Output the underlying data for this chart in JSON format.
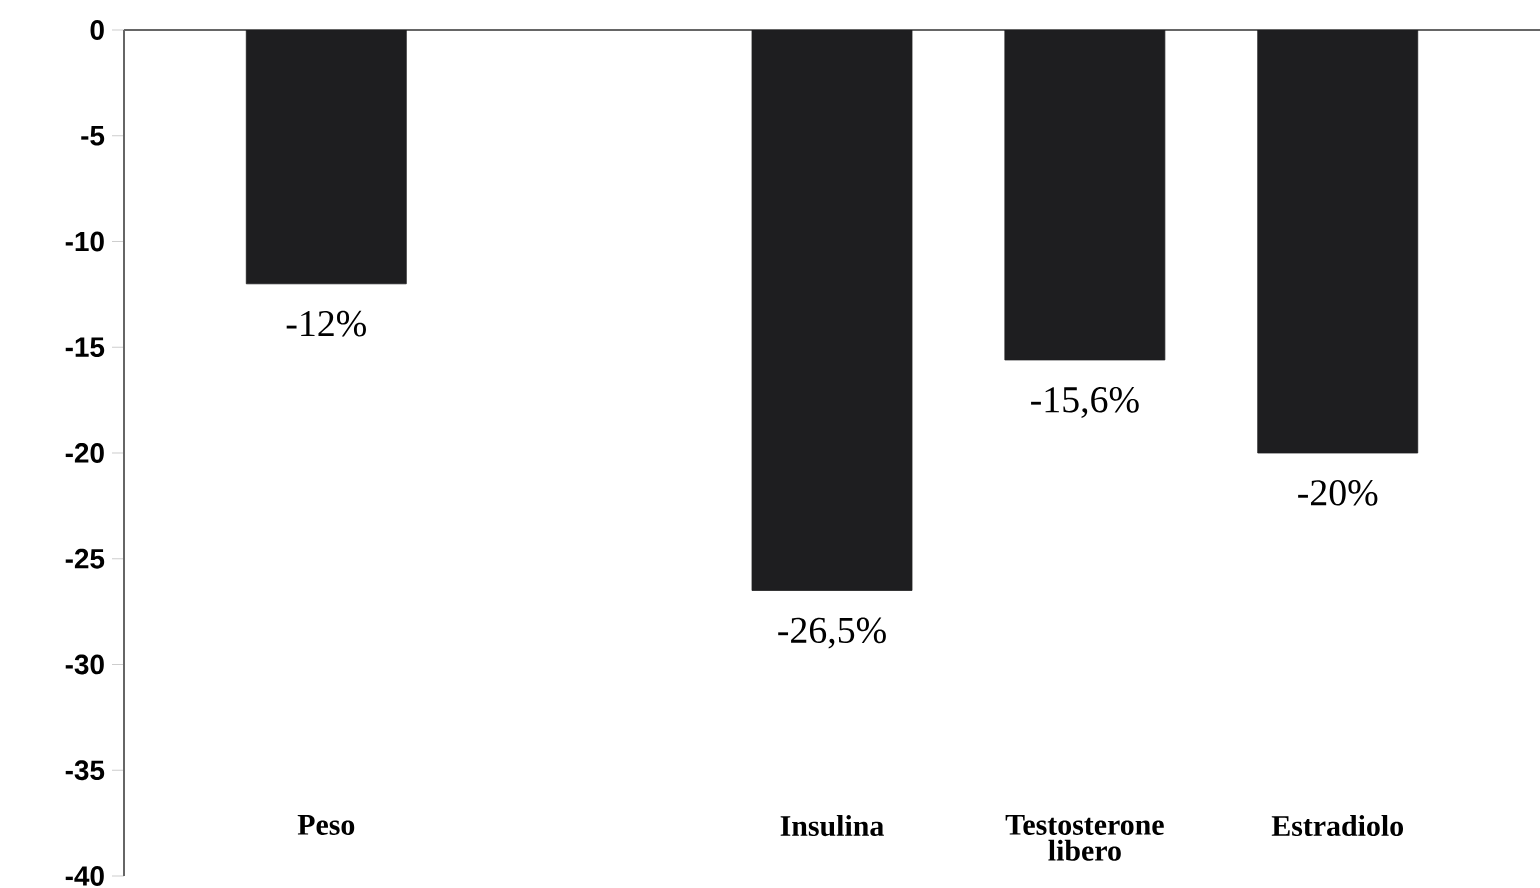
{
  "chart_data": {
    "type": "bar",
    "categories": [
      "Peso",
      null,
      "Insulina",
      "Testosterone libero",
      "Estradiolo"
    ],
    "values": [
      -12,
      null,
      -26.5,
      -15.6,
      -20
    ],
    "value_labels": [
      "-12%",
      null,
      "-26,5%",
      "-15,6%",
      "-20%"
    ],
    "color": "#1e1e20",
    "ylim": [
      -40,
      0
    ],
    "yticks": [
      0,
      -5,
      -10,
      -15,
      -20,
      -25,
      -30,
      -35,
      -40
    ],
    "grid": false
  }
}
